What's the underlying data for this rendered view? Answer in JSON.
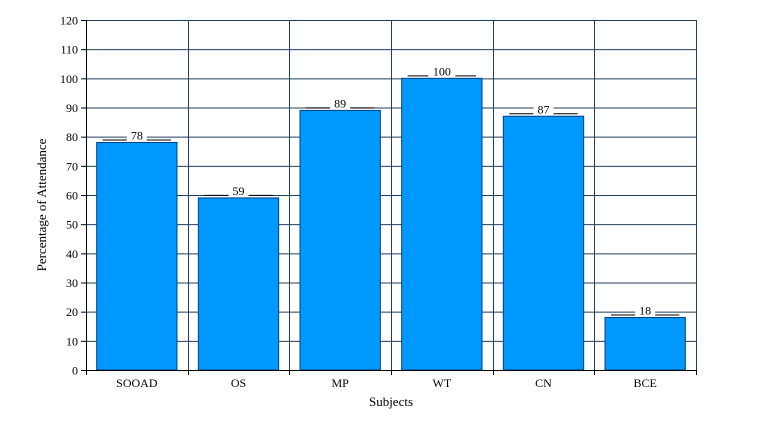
{
  "chart_data": {
    "type": "bar",
    "title": "",
    "xlabel": "Subjects",
    "ylabel": "Percentage of Attendance",
    "categories": [
      "SOOAD",
      "OS",
      "MP",
      "WT",
      "CN",
      "BCE"
    ],
    "values": [
      78,
      59,
      89,
      100,
      87,
      18
    ],
    "data_labels": [
      "78",
      "59",
      "89",
      "100",
      "87",
      "18"
    ],
    "ylim": [
      0,
      120
    ],
    "yticks": [
      0,
      10,
      20,
      30,
      40,
      50,
      60,
      70,
      80,
      90,
      100,
      110,
      120
    ],
    "ytick_labels": [
      "0",
      "10",
      "20",
      "30",
      "40",
      "50",
      "60",
      "70",
      "80",
      "90",
      "100",
      "110",
      "120"
    ],
    "grid": true,
    "legend": "none",
    "colors": {
      "bar": "#0099ff",
      "bar_edge": "#003f7f",
      "grid": "#1f3f5f",
      "axis": "#000000"
    }
  }
}
